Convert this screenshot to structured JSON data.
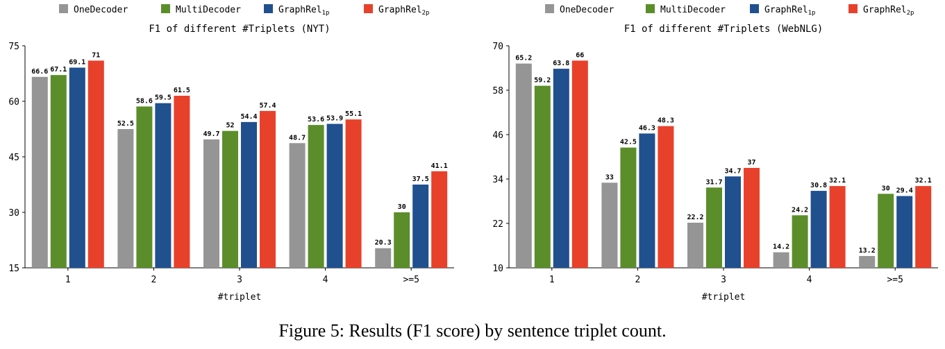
{
  "colors": {
    "OneDecoder": "#959595",
    "MultiDecoder": "#5b8e2a",
    "GraphRel1p": "#20508e",
    "GraphRel2p": "#e8412b"
  },
  "legend": [
    {
      "label": "OneDecoder",
      "sub": ""
    },
    {
      "label": "MultiDecoder",
      "sub": ""
    },
    {
      "label": "GraphRel",
      "sub": "1p"
    },
    {
      "label": "GraphRel",
      "sub": "2p"
    }
  ],
  "chart_data": [
    {
      "type": "bar",
      "title": "F1 of different #Triplets (NYT)",
      "xlabel": "#triplet",
      "ylabel": "",
      "categories": [
        "1",
        "2",
        "3",
        "4",
        ">=5"
      ],
      "ylim": [
        15,
        75
      ],
      "yticks": [
        15,
        30,
        45,
        60,
        75
      ],
      "series": [
        {
          "name": "OneDecoder",
          "values": [
            66.6,
            52.5,
            49.7,
            48.7,
            20.3
          ]
        },
        {
          "name": "MultiDecoder",
          "values": [
            67.1,
            58.6,
            52,
            53.6,
            30
          ]
        },
        {
          "name": "GraphRel1p",
          "values": [
            69.1,
            59.5,
            54.4,
            53.9,
            37.5
          ]
        },
        {
          "name": "GraphRel2p",
          "values": [
            71,
            61.5,
            57.4,
            55.1,
            41.1
          ]
        }
      ]
    },
    {
      "type": "bar",
      "title": "F1 of different #Triplets (WebNLG)",
      "xlabel": "#triplet",
      "ylabel": "",
      "categories": [
        "1",
        "2",
        "3",
        "4",
        ">=5"
      ],
      "ylim": [
        10,
        70
      ],
      "yticks": [
        10,
        22,
        34,
        46,
        58,
        70
      ],
      "series": [
        {
          "name": "OneDecoder",
          "values": [
            65.2,
            33,
            22.2,
            14.2,
            13.2
          ]
        },
        {
          "name": "MultiDecoder",
          "values": [
            59.2,
            42.5,
            31.7,
            24.2,
            30
          ]
        },
        {
          "name": "GraphRel1p",
          "values": [
            63.8,
            46.3,
            34.7,
            30.8,
            29.4
          ]
        },
        {
          "name": "GraphRel2p",
          "values": [
            66,
            48.3,
            37,
            32.1,
            32.1
          ]
        }
      ]
    }
  ],
  "caption": "Figure 5: Results (F1 score) by sentence triplet count."
}
